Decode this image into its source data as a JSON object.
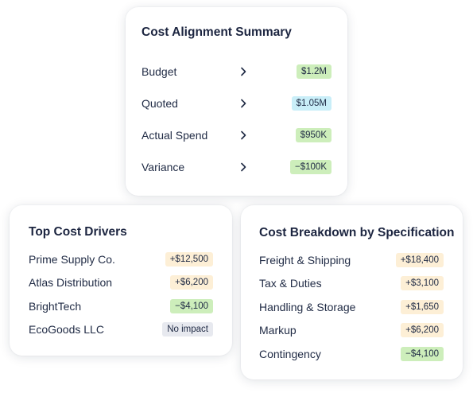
{
  "summary": {
    "title": "Cost Alignment Summary",
    "rows": [
      {
        "label": "Budget",
        "value": "$1.2M",
        "badge_color": "#cdeebb"
      },
      {
        "label": "Quoted",
        "value": "$1.05M",
        "badge_color": "#c9eef8"
      },
      {
        "label": "Actual Spend",
        "value": "$950K",
        "badge_color": "#cdeebb"
      },
      {
        "label": "Variance",
        "value": "−$100K",
        "badge_color": "#cdeebb"
      }
    ],
    "row_icon": "chevron-right-icon"
  },
  "drivers": {
    "title": "Top Cost Drivers",
    "rows": [
      {
        "label": "Prime Supply Co.",
        "value": "+$12,500",
        "badge_color": "#fdefd6"
      },
      {
        "label": "Atlas Distribution",
        "value": "+$6,200",
        "badge_color": "#fdefd6"
      },
      {
        "label": "BrightTech",
        "value": "−$4,100",
        "badge_color": "#cdeebb"
      },
      {
        "label": "EcoGoods LLC",
        "value": "No impact",
        "badge_color": "#e7e9ef"
      }
    ]
  },
  "breakdown": {
    "title": "Cost Breakdown by Specification",
    "rows": [
      {
        "label": "Freight & Shipping",
        "value": "+$18,400",
        "badge_color": "#fdefd6"
      },
      {
        "label": "Tax & Duties",
        "value": "+$3,100",
        "badge_color": "#fdefd6"
      },
      {
        "label": "Handling & Storage",
        "value": "+$1,650",
        "badge_color": "#fdefd6"
      },
      {
        "label": "Markup",
        "value": "+$6,200",
        "badge_color": "#fdefd6"
      },
      {
        "label": "Contingency",
        "value": "−$4,100",
        "badge_color": "#cdeebb"
      }
    ]
  }
}
